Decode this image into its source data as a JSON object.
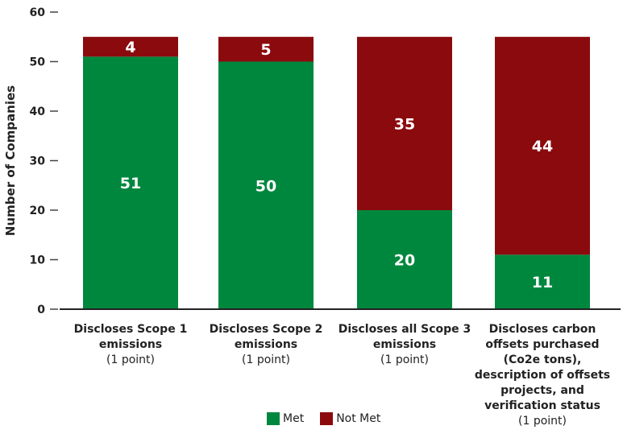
{
  "chart_data": {
    "type": "bar",
    "stacked": true,
    "ylabel": "Number of Companies",
    "ylim": [
      0,
      60
    ],
    "yticks": [
      0,
      10,
      20,
      30,
      40,
      50,
      60
    ],
    "categories": [
      {
        "label": "Discloses Scope 1 emissions",
        "sub": "(1 point)"
      },
      {
        "label": "Discloses Scope 2 emissions",
        "sub": "(1 point)"
      },
      {
        "label": "Discloses all Scope 3 emissions",
        "sub": "(1 point)"
      },
      {
        "label": "Discloses carbon offsets purchased (Co2e tons), description of offsets projects, and verification status",
        "sub": "(1 point)"
      }
    ],
    "series": [
      {
        "name": "Met",
        "color": "#00873e",
        "values": [
          51,
          50,
          20,
          11
        ]
      },
      {
        "name": "Not Met",
        "color": "#8b0a0d",
        "values": [
          4,
          5,
          35,
          44
        ]
      }
    ],
    "legend_position": "bottom",
    "grid": false
  }
}
